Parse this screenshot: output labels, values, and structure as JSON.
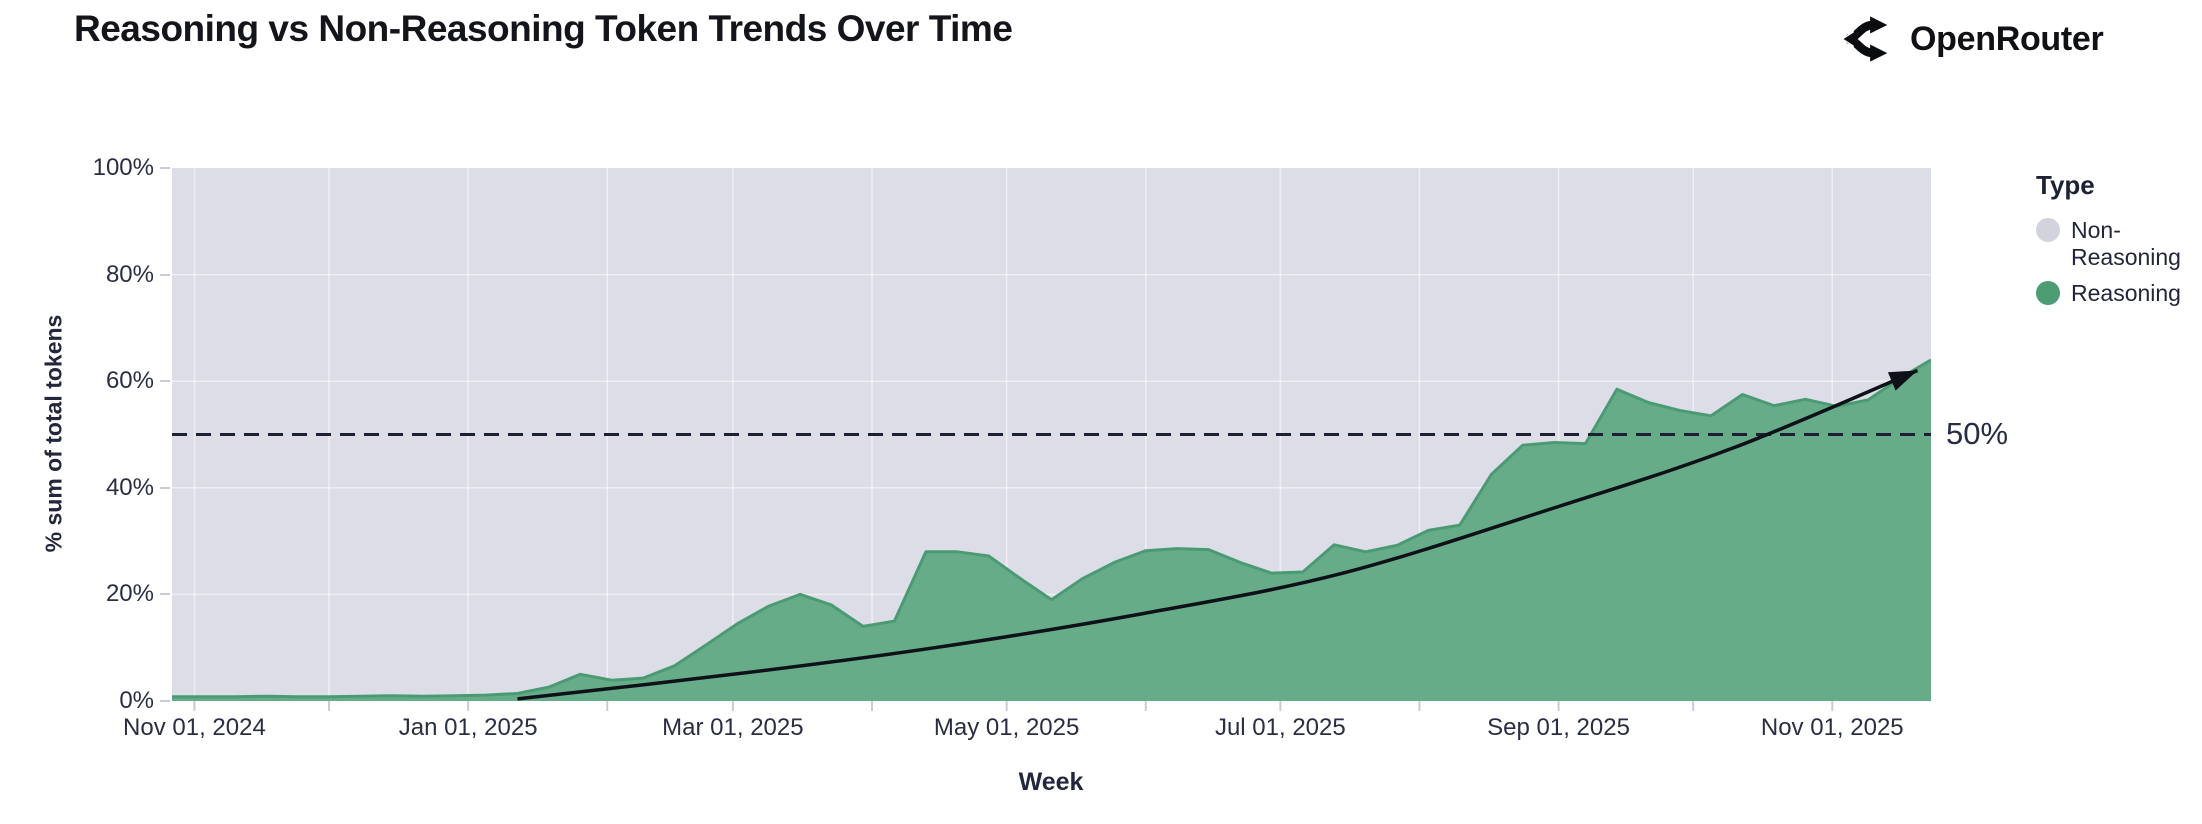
{
  "header": {
    "title": "Reasoning vs Non-Reasoning Token Trends Over Time",
    "brand": "OpenRouter"
  },
  "chart_data": {
    "type": "area",
    "stacking": "percent_of_total_stacked_to_100",
    "title": "Reasoning vs Non-Reasoning Token Trends Over Time",
    "xlabel": "Week",
    "ylabel": "% sum of total tokens",
    "ylim": [
      0,
      100
    ],
    "grid": "on",
    "legend_position": "right",
    "x_range": [
      "2024-10-27",
      "2025-11-23"
    ],
    "x_ticks": [
      {
        "date": "2024-11-01",
        "label": "Nov 01, 2024"
      },
      {
        "date": "2025-01-01",
        "label": "Jan 01, 2025"
      },
      {
        "date": "2025-03-01",
        "label": "Mar 01, 2025"
      },
      {
        "date": "2025-05-01",
        "label": "May 01, 2025"
      },
      {
        "date": "2025-07-01",
        "label": "Jul 01, 2025"
      },
      {
        "date": "2025-09-01",
        "label": "Sep 01, 2025"
      },
      {
        "date": "2025-11-01",
        "label": "Nov 01, 2025"
      }
    ],
    "month_gridlines": [
      "2024-11-01",
      "2024-12-01",
      "2025-01-01",
      "2025-02-01",
      "2025-03-01",
      "2025-04-01",
      "2025-05-01",
      "2025-06-01",
      "2025-07-01",
      "2025-08-01",
      "2025-09-01",
      "2025-10-01",
      "2025-11-01"
    ],
    "y_ticks": [
      {
        "value": 0,
        "label": "0%"
      },
      {
        "value": 20,
        "label": "20%"
      },
      {
        "value": 40,
        "label": "40%"
      },
      {
        "value": 60,
        "label": "60%"
      },
      {
        "value": 80,
        "label": "80%"
      },
      {
        "value": 100,
        "label": "100%"
      }
    ],
    "legend": {
      "title": "Type",
      "items": [
        {
          "label": "Non-Reasoning",
          "color": "#d2d3dd"
        },
        {
          "label": "Reasoning",
          "color": "#4d9c74"
        }
      ]
    },
    "annotation": {
      "label": "50%",
      "value": 50,
      "style": "dashed-horizontal-line"
    },
    "series": [
      {
        "name": "Reasoning",
        "fill_color": "#67ac88",
        "edge_color": "#4a9b73",
        "x": [
          "2024-10-27",
          "2024-11-03",
          "2024-11-10",
          "2024-11-17",
          "2024-11-24",
          "2024-12-01",
          "2024-12-08",
          "2024-12-15",
          "2024-12-22",
          "2024-12-29",
          "2025-01-05",
          "2025-01-12",
          "2025-01-19",
          "2025-01-26",
          "2025-02-02",
          "2025-02-09",
          "2025-02-16",
          "2025-02-23",
          "2025-03-02",
          "2025-03-09",
          "2025-03-16",
          "2025-03-23",
          "2025-03-30",
          "2025-04-06",
          "2025-04-13",
          "2025-04-20",
          "2025-04-27",
          "2025-05-04",
          "2025-05-11",
          "2025-05-18",
          "2025-05-25",
          "2025-06-01",
          "2025-06-08",
          "2025-06-15",
          "2025-06-22",
          "2025-06-29",
          "2025-07-06",
          "2025-07-13",
          "2025-07-20",
          "2025-07-27",
          "2025-08-03",
          "2025-08-10",
          "2025-08-17",
          "2025-08-24",
          "2025-08-31",
          "2025-09-07",
          "2025-09-14",
          "2025-09-21",
          "2025-09-28",
          "2025-10-05",
          "2025-10-12",
          "2025-10-19",
          "2025-10-26",
          "2025-11-02",
          "2025-11-09",
          "2025-11-16",
          "2025-11-23"
        ],
        "values": [
          0.8,
          0.8,
          0.8,
          0.9,
          0.8,
          0.8,
          0.9,
          1.0,
          0.9,
          1.0,
          1.1,
          1.4,
          2.6,
          5.0,
          3.9,
          4.3,
          6.6,
          10.5,
          14.5,
          17.8,
          20.0,
          18.0,
          14.0,
          15.0,
          28.0,
          28.0,
          27.2,
          23.0,
          19.0,
          23.0,
          26.0,
          28.2,
          28.6,
          28.4,
          26.0,
          24.0,
          24.2,
          29.3,
          28.0,
          29.2,
          32.0,
          33.0,
          42.5,
          48.0,
          48.5,
          48.3,
          58.5,
          56.0,
          54.5,
          53.5,
          57.5,
          55.4,
          56.6,
          55.3,
          56.5,
          60.5,
          64.0
        ]
      },
      {
        "name": "Non-Reasoning",
        "fill_color": "#dcdde6",
        "derivation": "100 minus Reasoning (chart is stacked to 100%)"
      }
    ],
    "trend_arrow": {
      "description": "black curved trend arrow",
      "color": "#0e1118",
      "points": [
        [
          "2025-01-12",
          0.4
        ],
        [
          "2025-03-01",
          5.0
        ],
        [
          "2025-04-15",
          10.0
        ],
        [
          "2025-06-01",
          16.5
        ],
        [
          "2025-07-15",
          24.0
        ],
        [
          "2025-09-01",
          36.5
        ],
        [
          "2025-10-10",
          47.5
        ],
        [
          "2025-11-20",
          62.0
        ]
      ]
    },
    "plot_colors": {
      "background_gray": "#dcdde6",
      "gridline": "#ffffff",
      "dashed_line": "#1b2032",
      "axis_text": "#2a2e44",
      "tick_mark": "#c9cbd6"
    }
  }
}
